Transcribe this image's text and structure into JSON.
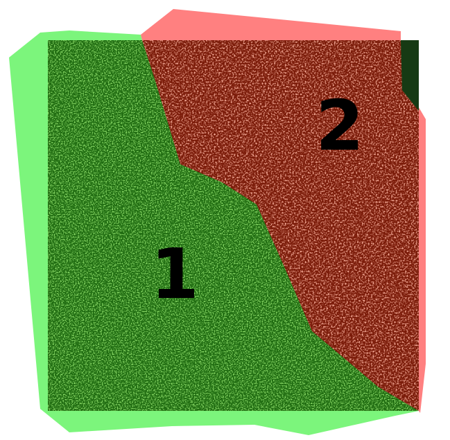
{
  "map": {
    "zones": [
      {
        "id": "1",
        "label": "1",
        "color": "#00cc00",
        "halo_color": "#7cf57c"
      },
      {
        "id": "2",
        "label": "2",
        "color": "#ff0000",
        "halo_color": "#ff8080"
      }
    ],
    "imagery_colors": {
      "vegetation_dark": "#1e6a10",
      "vegetation_light": "#7fd84a",
      "bare_dark": "#7a1a08",
      "bare_light": "#f06a50",
      "outer_corner": "#163a14"
    }
  }
}
